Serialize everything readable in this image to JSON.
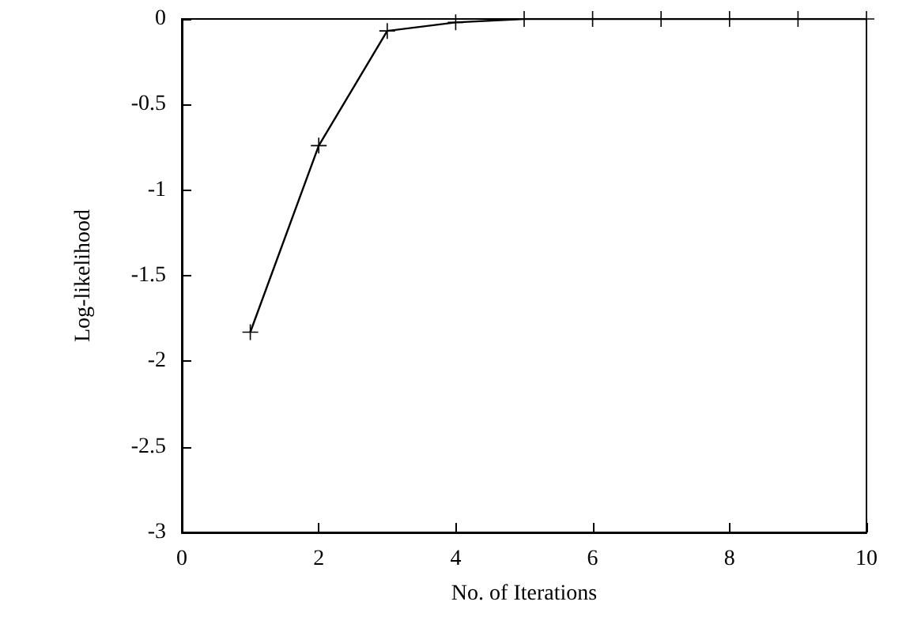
{
  "chart_data": {
    "type": "line",
    "xlabel": "No. of Iterations",
    "ylabel": "Log-likelihood",
    "x": [
      1,
      2,
      3,
      4,
      5,
      6,
      7,
      8,
      9,
      10
    ],
    "series": [
      {
        "color": "#000000",
        "values": [
          -1.83,
          -0.74,
          -0.07,
          -0.02,
          0,
          0,
          0,
          0,
          0,
          0
        ]
      }
    ],
    "xlim": [
      0,
      10
    ],
    "xticks": [
      0,
      2,
      4,
      6,
      8,
      10
    ],
    "ylim": [
      -3,
      0
    ],
    "yticks": [
      -3,
      -2.5,
      -2,
      -1.5,
      -1,
      -0.5,
      0
    ],
    "grid": false,
    "marker": "cross",
    "line_style": "solid"
  }
}
